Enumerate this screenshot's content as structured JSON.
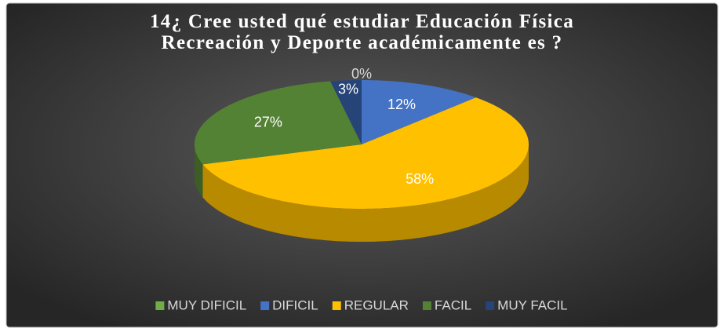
{
  "chart_data": {
    "type": "pie",
    "title": "14¿ Cree usted qué estudiar Educación Física\nRecreación y Deporte  académicamente es ?",
    "categories": [
      "MUY DIFICIL",
      "DIFICIL",
      "REGULAR",
      "FACIL",
      "MUY FACIL"
    ],
    "values": [
      0,
      12,
      58,
      27,
      3
    ],
    "value_labels": [
      "0%",
      "12%",
      "58%",
      "27%",
      "3%"
    ],
    "colors": [
      "#70ad47",
      "#4472c4",
      "#ffc000",
      "#548235",
      "#264478"
    ],
    "legend": "bottom"
  }
}
